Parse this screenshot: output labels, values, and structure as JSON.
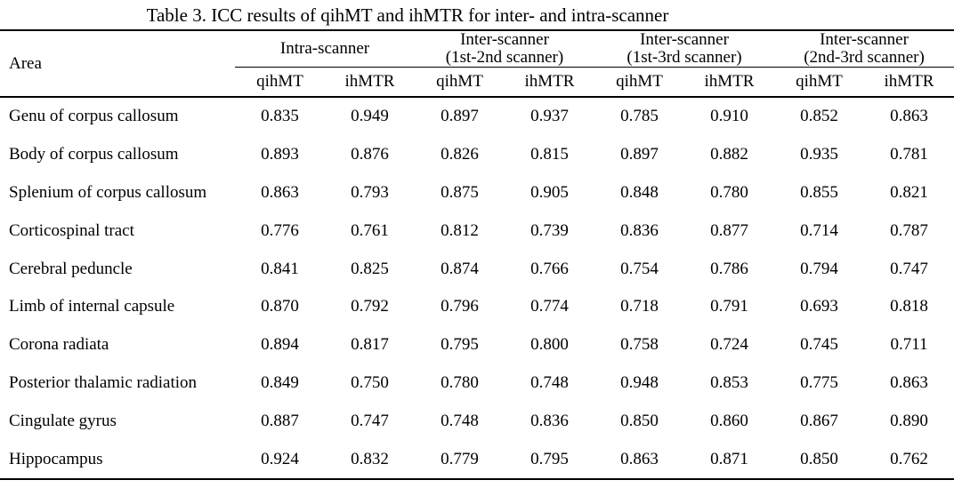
{
  "title": "Table 3. ICC results of qihMT and ihMTR for inter- and intra-scanner",
  "table": {
    "area_header": "Area",
    "groups": [
      {
        "line1": "Intra-scanner",
        "line2": ""
      },
      {
        "line1": "Inter-scanner",
        "line2": "(1st-2nd scanner)"
      },
      {
        "line1": "Inter-scanner",
        "line2": "(1st-3rd scanner)"
      },
      {
        "line1": "Inter-scanner",
        "line2": "(2nd-3rd scanner)"
      }
    ],
    "subheaders": [
      "qihMT",
      "ihMTR",
      "qihMT",
      "ihMTR",
      "qihMT",
      "ihMTR",
      "qihMT",
      "ihMTR"
    ],
    "rows": [
      {
        "area": "Genu of corpus callosum",
        "values": [
          "0.835",
          "0.949",
          "0.897",
          "0.937",
          "0.785",
          "0.910",
          "0.852",
          "0.863"
        ]
      },
      {
        "area": "Body of corpus callosum",
        "values": [
          "0.893",
          "0.876",
          "0.826",
          "0.815",
          "0.897",
          "0.882",
          "0.935",
          "0.781"
        ]
      },
      {
        "area": "Splenium of corpus callosum",
        "values": [
          "0.863",
          "0.793",
          "0.875",
          "0.905",
          "0.848",
          "0.780",
          "0.855",
          "0.821"
        ]
      },
      {
        "area": "Corticospinal tract",
        "values": [
          "0.776",
          "0.761",
          "0.812",
          "0.739",
          "0.836",
          "0.877",
          "0.714",
          "0.787"
        ]
      },
      {
        "area": "Cerebral peduncle",
        "values": [
          "0.841",
          "0.825",
          "0.874",
          "0.766",
          "0.754",
          "0.786",
          "0.794",
          "0.747"
        ]
      },
      {
        "area": "Limb of internal capsule",
        "values": [
          "0.870",
          "0.792",
          "0.796",
          "0.774",
          "0.718",
          "0.791",
          "0.693",
          "0.818"
        ]
      },
      {
        "area": "Corona radiata",
        "values": [
          "0.894",
          "0.817",
          "0.795",
          "0.800",
          "0.758",
          "0.724",
          "0.745",
          "0.711"
        ]
      },
      {
        "area": "Posterior thalamic radiation",
        "values": [
          "0.849",
          "0.750",
          "0.780",
          "0.748",
          "0.948",
          "0.853",
          "0.775",
          "0.863"
        ]
      },
      {
        "area": "Cingulate gyrus",
        "values": [
          "0.887",
          "0.747",
          "0.748",
          "0.836",
          "0.850",
          "0.860",
          "0.867",
          "0.890"
        ]
      },
      {
        "area": "Hippocampus",
        "values": [
          "0.924",
          "0.832",
          "0.779",
          "0.795",
          "0.863",
          "0.871",
          "0.850",
          "0.762"
        ]
      }
    ]
  },
  "chart_data": {
    "type": "table",
    "title": "Table 3. ICC results of qihMT and ihMTR for inter- and intra-scanner",
    "columns": [
      "Area",
      "Intra-scanner qihMT",
      "Intra-scanner ihMTR",
      "Inter-scanner (1st-2nd scanner) qihMT",
      "Inter-scanner (1st-2nd scanner) ihMTR",
      "Inter-scanner (1st-3rd scanner) qihMT",
      "Inter-scanner (1st-3rd scanner) ihMTR",
      "Inter-scanner (2nd-3rd scanner) qihMT",
      "Inter-scanner (2nd-3rd scanner) ihMTR"
    ],
    "rows": [
      [
        "Genu of corpus callosum",
        0.835,
        0.949,
        0.897,
        0.937,
        0.785,
        0.91,
        0.852,
        0.863
      ],
      [
        "Body of corpus callosum",
        0.893,
        0.876,
        0.826,
        0.815,
        0.897,
        0.882,
        0.935,
        0.781
      ],
      [
        "Splenium of corpus callosum",
        0.863,
        0.793,
        0.875,
        0.905,
        0.848,
        0.78,
        0.855,
        0.821
      ],
      [
        "Corticospinal tract",
        0.776,
        0.761,
        0.812,
        0.739,
        0.836,
        0.877,
        0.714,
        0.787
      ],
      [
        "Cerebral peduncle",
        0.841,
        0.825,
        0.874,
        0.766,
        0.754,
        0.786,
        0.794,
        0.747
      ],
      [
        "Limb of internal capsule",
        0.87,
        0.792,
        0.796,
        0.774,
        0.718,
        0.791,
        0.693,
        0.818
      ],
      [
        "Corona radiata",
        0.894,
        0.817,
        0.795,
        0.8,
        0.758,
        0.724,
        0.745,
        0.711
      ],
      [
        "Posterior thalamic radiation",
        0.849,
        0.75,
        0.78,
        0.748,
        0.948,
        0.853,
        0.775,
        0.863
      ],
      [
        "Cingulate gyrus",
        0.887,
        0.747,
        0.748,
        0.836,
        0.85,
        0.86,
        0.867,
        0.89
      ],
      [
        "Hippocampus",
        0.924,
        0.832,
        0.779,
        0.795,
        0.863,
        0.871,
        0.85,
        0.762
      ]
    ]
  },
  "colors": {
    "text": "#000000",
    "background": "#ffffff",
    "rule": "#000000"
  }
}
